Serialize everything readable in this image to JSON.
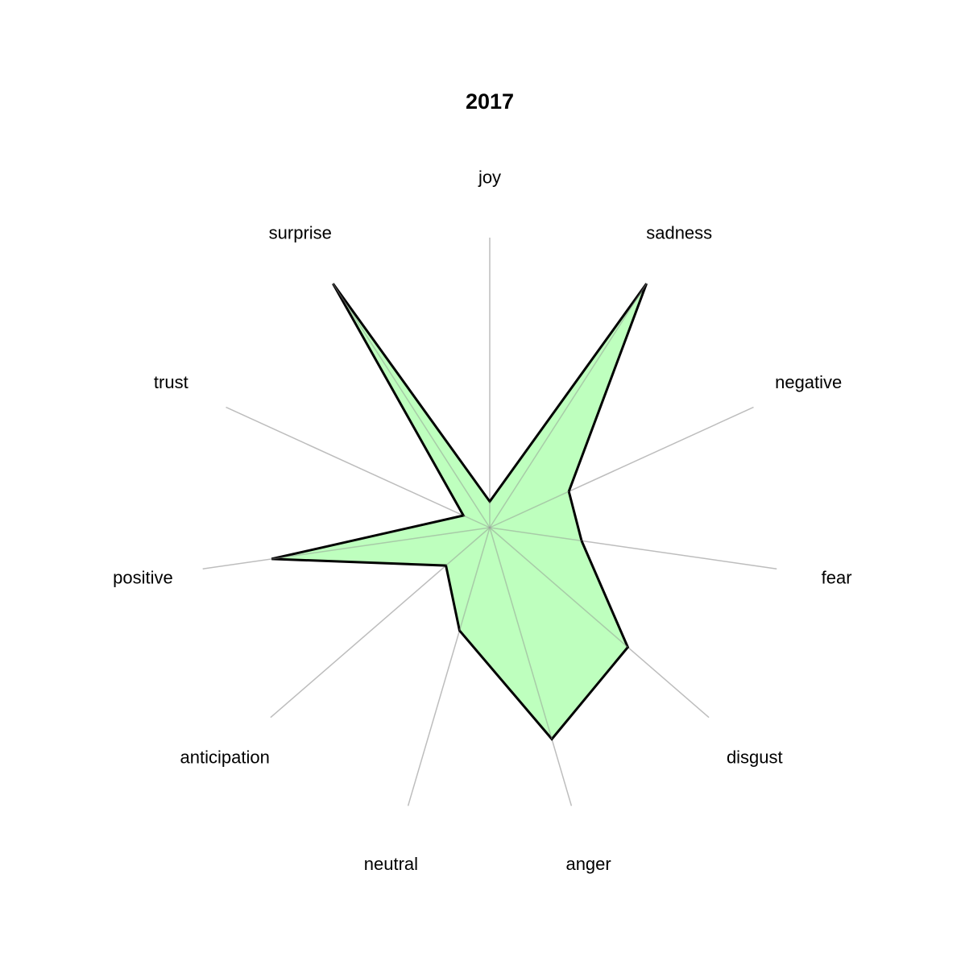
{
  "chart_data": {
    "type": "radar",
    "title": "2017",
    "categories": [
      "joy",
      "sadness",
      "negative",
      "fear",
      "disgust",
      "anger",
      "neutral",
      "anticipation",
      "positive",
      "trust",
      "surprise"
    ],
    "series": [
      {
        "values": [
          0.09,
          1.0,
          0.3,
          0.32,
          0.63,
          0.76,
          0.37,
          0.2,
          0.76,
          0.1,
          1.0
        ]
      }
    ],
    "rlim": [
      0,
      1
    ],
    "colors": {
      "fill": "#b3ffb3",
      "stroke": "#000000",
      "axis": "#bdbdbd"
    }
  }
}
